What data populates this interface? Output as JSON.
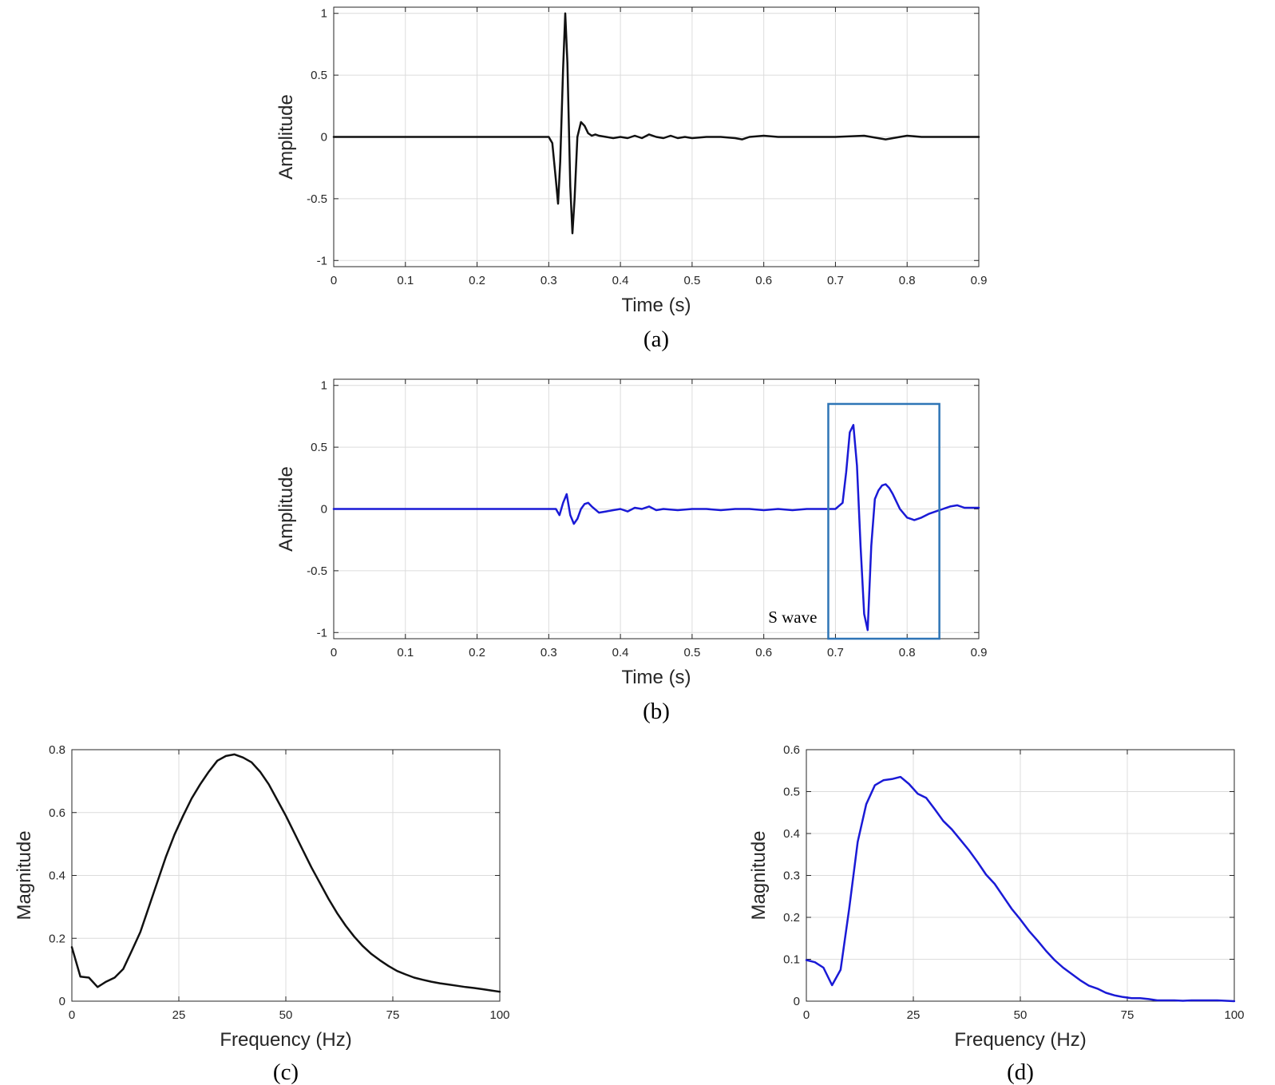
{
  "colors": {
    "black_series": "#111111",
    "blue_series": "#1a1ad6",
    "highlight_box": "#2e75b6",
    "axis": "#262626",
    "grid": "#dcdcdc"
  },
  "chart_data": [
    {
      "id": "a",
      "type": "line",
      "caption": "(a)",
      "xlabel": "Time (s)",
      "ylabel": "Amplitude",
      "xlim": [
        0,
        0.9
      ],
      "ylim": [
        -1.05,
        1.05
      ],
      "xticks": [
        0,
        0.1,
        0.2,
        0.3,
        0.4,
        0.5,
        0.6,
        0.7,
        0.8,
        0.9
      ],
      "xtick_labels": [
        "0",
        "0.1",
        "0.2",
        "0.3",
        "0.4",
        "0.5",
        "0.6",
        "0.7",
        "0.8",
        "0.9"
      ],
      "yticks": [
        -1,
        -0.5,
        0,
        0.5,
        1
      ],
      "ytick_labels": [
        "-1",
        "-0.5",
        "0",
        "0.5",
        "1"
      ],
      "grid": true,
      "color": "#111111",
      "series": [
        {
          "x": [
            0,
            0.05,
            0.1,
            0.15,
            0.2,
            0.25,
            0.3,
            0.305,
            0.31,
            0.313,
            0.316,
            0.32,
            0.323,
            0.326,
            0.33,
            0.333,
            0.336,
            0.34,
            0.345,
            0.35,
            0.355,
            0.36,
            0.365,
            0.37,
            0.38,
            0.39,
            0.4,
            0.41,
            0.42,
            0.43,
            0.44,
            0.45,
            0.46,
            0.47,
            0.48,
            0.49,
            0.5,
            0.52,
            0.54,
            0.56,
            0.57,
            0.58,
            0.6,
            0.62,
            0.65,
            0.7,
            0.74,
            0.77,
            0.79,
            0.8,
            0.82,
            0.85,
            0.9
          ],
          "y": [
            0,
            0,
            0,
            0,
            0,
            0,
            0,
            -0.05,
            -0.35,
            -0.54,
            -0.2,
            0.55,
            1.0,
            0.6,
            -0.4,
            -0.78,
            -0.5,
            0.0,
            0.12,
            0.09,
            0.03,
            0.01,
            0.02,
            0.01,
            0.0,
            -0.01,
            0.0,
            -0.01,
            0.01,
            -0.01,
            0.02,
            0.0,
            -0.01,
            0.01,
            -0.01,
            0.0,
            -0.01,
            0.0,
            0.0,
            -0.01,
            -0.02,
            0.0,
            0.01,
            0.0,
            0.0,
            0.0,
            0.01,
            -0.02,
            0.0,
            0.01,
            0.0,
            0.0,
            0.0
          ]
        }
      ]
    },
    {
      "id": "b",
      "type": "line",
      "caption": "(b)",
      "xlabel": "Time (s)",
      "ylabel": "Amplitude",
      "xlim": [
        0,
        0.9
      ],
      "ylim": [
        -1.05,
        1.05
      ],
      "xticks": [
        0,
        0.1,
        0.2,
        0.3,
        0.4,
        0.5,
        0.6,
        0.7,
        0.8,
        0.9
      ],
      "xtick_labels": [
        "0",
        "0.1",
        "0.2",
        "0.3",
        "0.4",
        "0.5",
        "0.6",
        "0.7",
        "0.8",
        "0.9"
      ],
      "yticks": [
        -1,
        -0.5,
        0,
        0.5,
        1
      ],
      "ytick_labels": [
        "-1",
        "-0.5",
        "0",
        "0.5",
        "1"
      ],
      "grid": true,
      "color": "#1a1ad6",
      "annotation": {
        "text": "S wave",
        "box_x": [
          0.69,
          0.845
        ],
        "box_y": [
          -1.05,
          0.85
        ]
      },
      "series": [
        {
          "x": [
            0,
            0.05,
            0.1,
            0.15,
            0.2,
            0.25,
            0.3,
            0.31,
            0.315,
            0.32,
            0.325,
            0.33,
            0.335,
            0.34,
            0.345,
            0.35,
            0.355,
            0.36,
            0.37,
            0.38,
            0.39,
            0.4,
            0.41,
            0.42,
            0.43,
            0.44,
            0.45,
            0.46,
            0.48,
            0.5,
            0.52,
            0.54,
            0.56,
            0.58,
            0.6,
            0.62,
            0.64,
            0.66,
            0.68,
            0.7,
            0.71,
            0.715,
            0.72,
            0.725,
            0.73,
            0.735,
            0.74,
            0.745,
            0.75,
            0.755,
            0.76,
            0.765,
            0.77,
            0.775,
            0.78,
            0.79,
            0.8,
            0.81,
            0.82,
            0.83,
            0.84,
            0.85,
            0.86,
            0.87,
            0.88,
            0.9
          ],
          "y": [
            0,
            0,
            0,
            0,
            0,
            0,
            0,
            0,
            -0.05,
            0.05,
            0.12,
            -0.05,
            -0.12,
            -0.08,
            0.0,
            0.04,
            0.05,
            0.02,
            -0.03,
            -0.02,
            -0.01,
            0.0,
            -0.02,
            0.01,
            0.0,
            0.02,
            -0.01,
            0.0,
            -0.01,
            0.0,
            0.0,
            -0.01,
            0.0,
            0.0,
            -0.01,
            0.0,
            -0.01,
            0.0,
            0.0,
            0.0,
            0.05,
            0.3,
            0.62,
            0.68,
            0.35,
            -0.3,
            -0.85,
            -0.98,
            -0.3,
            0.08,
            0.15,
            0.19,
            0.2,
            0.17,
            0.12,
            0.0,
            -0.07,
            -0.09,
            -0.07,
            -0.04,
            -0.02,
            0.0,
            0.02,
            0.03,
            0.01,
            0.01
          ]
        }
      ]
    },
    {
      "id": "c",
      "type": "line",
      "caption": "(c)",
      "xlabel": "Frequency (Hz)",
      "ylabel": "Magnitude",
      "xlim": [
        0,
        100
      ],
      "ylim": [
        0,
        0.8
      ],
      "xticks": [
        0,
        25,
        50,
        75,
        100
      ],
      "xtick_labels": [
        "0",
        "25",
        "50",
        "75",
        "100"
      ],
      "yticks": [
        0,
        0.2,
        0.4,
        0.6,
        0.8
      ],
      "ytick_labels": [
        "0",
        "0.2",
        "0.4",
        "0.6",
        "0.8"
      ],
      "grid": true,
      "color": "#111111",
      "series": [
        {
          "x": [
            0,
            2,
            4,
            6,
            8,
            10,
            12,
            14,
            16,
            18,
            20,
            22,
            24,
            26,
            28,
            30,
            32,
            34,
            36,
            38,
            40,
            42,
            44,
            46,
            48,
            50,
            52,
            54,
            56,
            58,
            60,
            62,
            64,
            66,
            68,
            70,
            72,
            74,
            76,
            78,
            80,
            82,
            84,
            86,
            88,
            90,
            92,
            94,
            96,
            98,
            100
          ],
          "y": [
            0.172,
            0.078,
            0.075,
            0.045,
            0.062,
            0.075,
            0.102,
            0.16,
            0.22,
            0.3,
            0.38,
            0.46,
            0.53,
            0.59,
            0.645,
            0.69,
            0.73,
            0.765,
            0.78,
            0.785,
            0.775,
            0.76,
            0.73,
            0.69,
            0.64,
            0.59,
            0.535,
            0.48,
            0.425,
            0.375,
            0.325,
            0.28,
            0.24,
            0.205,
            0.175,
            0.15,
            0.13,
            0.112,
            0.096,
            0.085,
            0.075,
            0.068,
            0.062,
            0.057,
            0.053,
            0.049,
            0.045,
            0.042,
            0.038,
            0.034,
            0.03
          ]
        }
      ]
    },
    {
      "id": "d",
      "type": "line",
      "caption": "(d)",
      "xlabel": "Frequency (Hz)",
      "ylabel": "Magnitude",
      "xlim": [
        0,
        100
      ],
      "ylim": [
        0,
        0.6
      ],
      "xticks": [
        0,
        25,
        50,
        75,
        100
      ],
      "xtick_labels": [
        "0",
        "25",
        "50",
        "75",
        "100"
      ],
      "yticks": [
        0,
        0.1,
        0.2,
        0.3,
        0.4,
        0.5,
        0.6
      ],
      "ytick_labels": [
        "0",
        "0.1",
        "0.2",
        "0.3",
        "0.4",
        "0.5",
        "0.6"
      ],
      "grid": true,
      "color": "#1a1ad6",
      "series": [
        {
          "x": [
            0,
            2,
            4,
            6,
            8,
            10,
            12,
            14,
            16,
            18,
            20,
            22,
            24,
            26,
            28,
            30,
            32,
            34,
            36,
            38,
            40,
            42,
            44,
            46,
            48,
            50,
            52,
            54,
            56,
            58,
            60,
            62,
            64,
            66,
            68,
            70,
            72,
            74,
            76,
            78,
            80,
            82,
            84,
            86,
            88,
            90,
            92,
            94,
            96,
            98,
            100
          ],
          "y": [
            0.098,
            0.093,
            0.08,
            0.038,
            0.075,
            0.22,
            0.38,
            0.47,
            0.515,
            0.527,
            0.53,
            0.535,
            0.518,
            0.495,
            0.485,
            0.458,
            0.43,
            0.41,
            0.385,
            0.36,
            0.332,
            0.302,
            0.28,
            0.25,
            0.22,
            0.195,
            0.168,
            0.145,
            0.12,
            0.098,
            0.08,
            0.065,
            0.05,
            0.037,
            0.03,
            0.02,
            0.014,
            0.01,
            0.007,
            0.007,
            0.005,
            0.002,
            0.002,
            0.002,
            0.001,
            0.002,
            0.002,
            0.002,
            0.002,
            0.001,
            0.0
          ]
        }
      ]
    }
  ]
}
